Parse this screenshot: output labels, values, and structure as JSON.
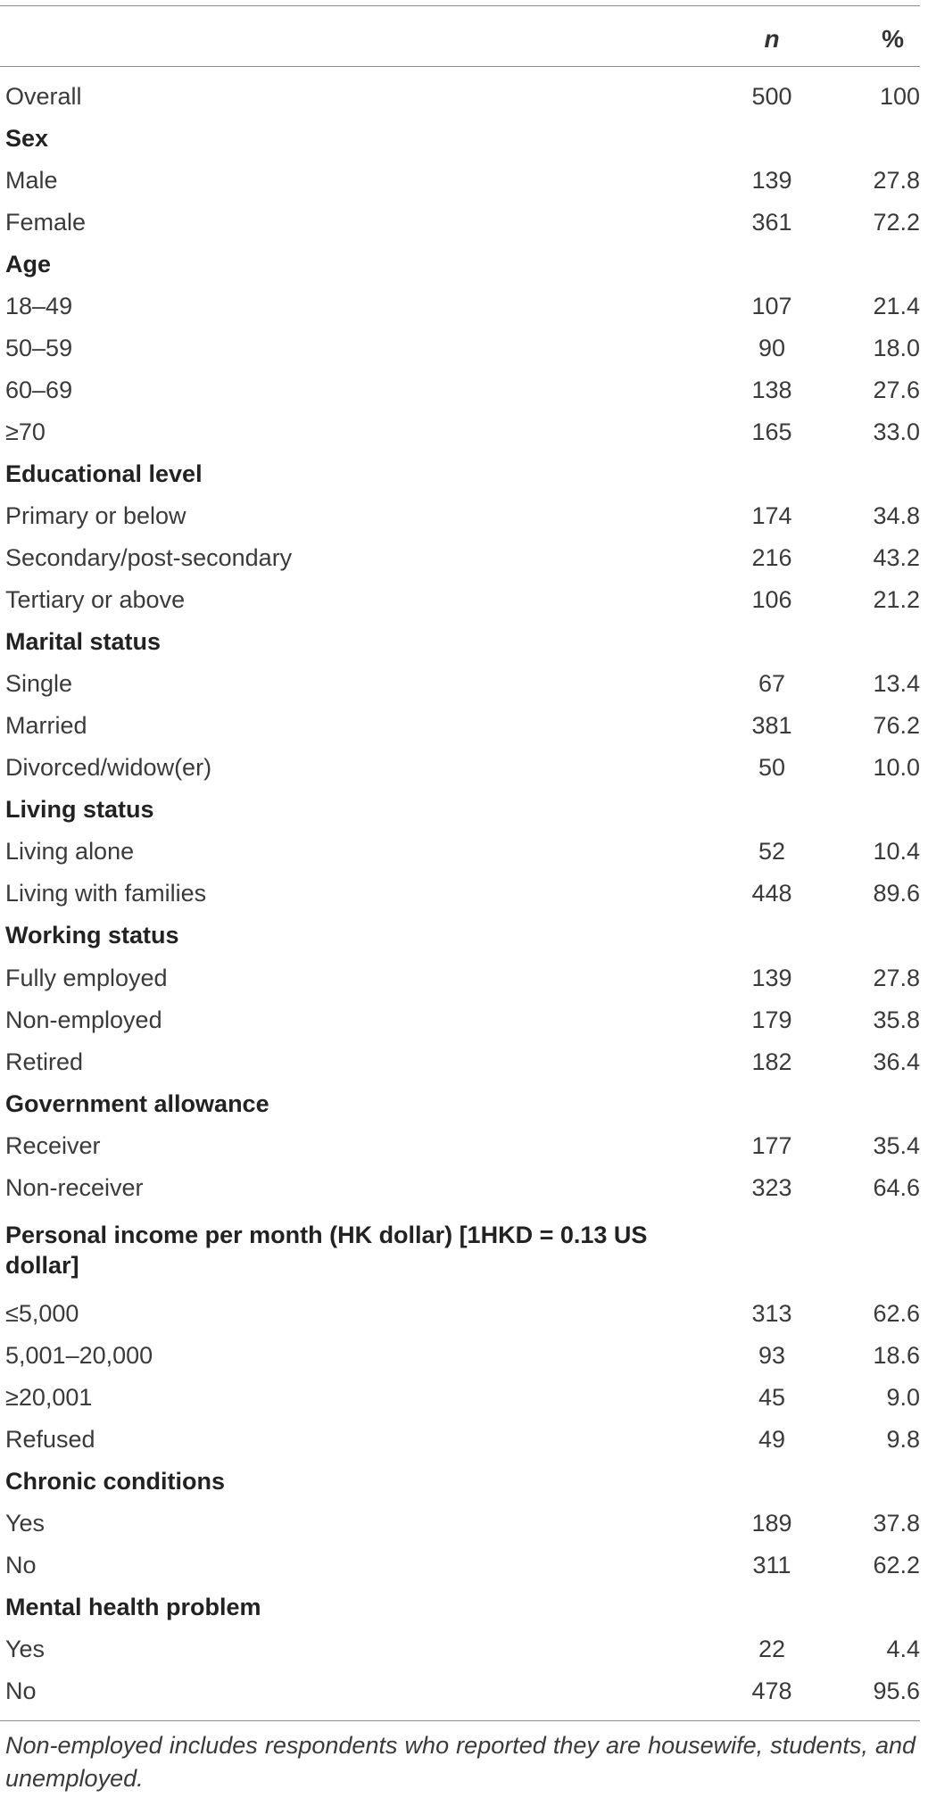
{
  "header": {
    "label": "",
    "n": "n",
    "pct": "%"
  },
  "rows": [
    {
      "label": "Overall",
      "n": "500",
      "pct": "100"
    },
    {
      "label": "Sex",
      "section": true
    },
    {
      "label": "Male",
      "n": "139",
      "pct": "27.8"
    },
    {
      "label": "Female",
      "n": "361",
      "pct": "72.2"
    },
    {
      "label": "Age",
      "section": true
    },
    {
      "label": "18–49",
      "n": "107",
      "pct": "21.4"
    },
    {
      "label": "50–59",
      "n": "90",
      "pct": "18.0"
    },
    {
      "label": "60–69",
      "n": "138",
      "pct": "27.6"
    },
    {
      "label": "≥70",
      "n": "165",
      "pct": "33.0"
    },
    {
      "label": "Educational level",
      "section": true
    },
    {
      "label": "Primary or below",
      "n": "174",
      "pct": "34.8"
    },
    {
      "label": "Secondary/post-secondary",
      "n": "216",
      "pct": "43.2"
    },
    {
      "label": "Tertiary or above",
      "n": "106",
      "pct": "21.2"
    },
    {
      "label": "Marital status",
      "section": true
    },
    {
      "label": "Single",
      "n": "67",
      "pct": "13.4"
    },
    {
      "label": "Married",
      "n": "381",
      "pct": "76.2"
    },
    {
      "label": "Divorced/widow(er)",
      "n": "50",
      "pct": "10.0"
    },
    {
      "label": "Living status",
      "section": true
    },
    {
      "label": "Living alone",
      "n": "52",
      "pct": "10.4"
    },
    {
      "label": "Living with families",
      "n": "448",
      "pct": "89.6"
    },
    {
      "label": "Working status",
      "section": true
    },
    {
      "label": "Fully employed",
      "n": "139",
      "pct": "27.8"
    },
    {
      "label": "Non-employed",
      "n": "179",
      "pct": "35.8"
    },
    {
      "label": "Retired",
      "n": "182",
      "pct": "36.4"
    },
    {
      "label": "Government allowance",
      "section": true
    },
    {
      "label": "Receiver",
      "n": "177",
      "pct": "35.4"
    },
    {
      "label": "Non-receiver",
      "n": "323",
      "pct": "64.6"
    },
    {
      "label": "Personal income per month (HK dollar) [1HKD = 0.13 US dollar]",
      "section": true,
      "tall": true
    },
    {
      "label": "≤5,000",
      "n": "313",
      "pct": "62.6"
    },
    {
      "label": "5,001–20,000",
      "n": "93",
      "pct": "18.6"
    },
    {
      "label": "≥20,001",
      "n": "45",
      "pct": "9.0"
    },
    {
      "label": "Refused",
      "n": "49",
      "pct": "9.8"
    },
    {
      "label": "Chronic conditions",
      "section": true
    },
    {
      "label": "Yes",
      "n": "189",
      "pct": "37.8"
    },
    {
      "label": "No",
      "n": "311",
      "pct": "62.2"
    },
    {
      "label": "Mental health problem",
      "section": true
    },
    {
      "label": "Yes",
      "n": "22",
      "pct": "4.4"
    },
    {
      "label": "No",
      "n": "478",
      "pct": "95.6"
    }
  ],
  "footnote": "Non-employed includes respondents who reported they are housewife, students, and unemployed."
}
